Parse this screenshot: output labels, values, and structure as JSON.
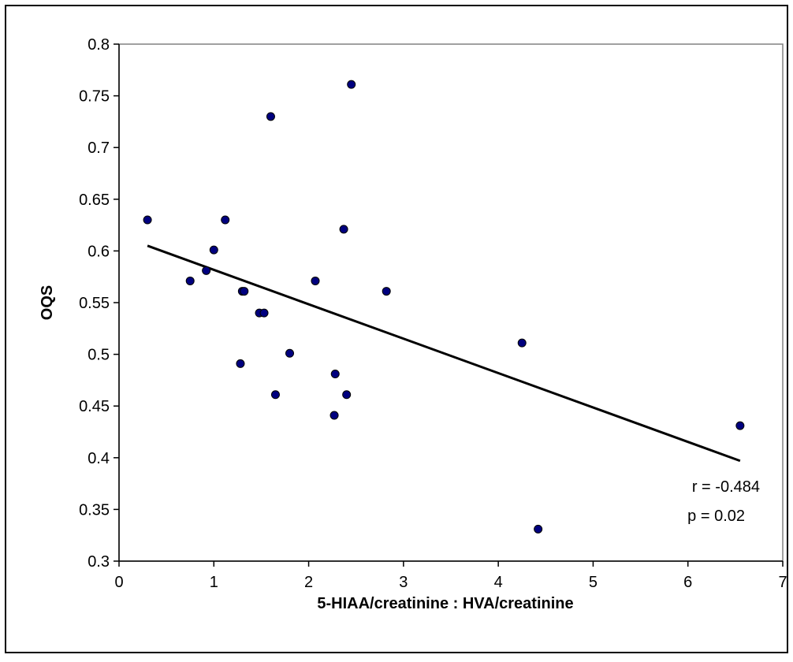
{
  "chart_data": {
    "type": "scatter",
    "title": "",
    "xlabel": "5-HIAA/creatinine : HVA/creatinine",
    "ylabel": "OQS",
    "xlim": [
      0,
      7
    ],
    "ylim": [
      0.3,
      0.8
    ],
    "x_ticks": [
      "0",
      "1",
      "2",
      "3",
      "4",
      "5",
      "6",
      "7"
    ],
    "y_ticks": [
      "0.3",
      "0.35",
      "0.4",
      "0.45",
      "0.5",
      "0.55",
      "0.6",
      "0.65",
      "0.7",
      "0.75",
      "0.8"
    ],
    "grid": false,
    "legend": "none",
    "marker_color": "#00007f",
    "marker_edge_color": "#000000",
    "line_color": "#000000",
    "points": [
      {
        "x": 0.3,
        "y": 0.63
      },
      {
        "x": 0.75,
        "y": 0.571
      },
      {
        "x": 0.92,
        "y": 0.581
      },
      {
        "x": 1.0,
        "y": 0.601
      },
      {
        "x": 1.12,
        "y": 0.63
      },
      {
        "x": 1.28,
        "y": 0.491
      },
      {
        "x": 1.3,
        "y": 0.561
      },
      {
        "x": 1.32,
        "y": 0.561
      },
      {
        "x": 1.48,
        "y": 0.54
      },
      {
        "x": 1.53,
        "y": 0.54
      },
      {
        "x": 1.6,
        "y": 0.73
      },
      {
        "x": 1.65,
        "y": 0.461
      },
      {
        "x": 1.8,
        "y": 0.501
      },
      {
        "x": 2.07,
        "y": 0.571
      },
      {
        "x": 2.27,
        "y": 0.441
      },
      {
        "x": 2.28,
        "y": 0.481
      },
      {
        "x": 2.37,
        "y": 0.621
      },
      {
        "x": 2.4,
        "y": 0.461
      },
      {
        "x": 2.45,
        "y": 0.761
      },
      {
        "x": 2.82,
        "y": 0.561
      },
      {
        "x": 4.25,
        "y": 0.511
      },
      {
        "x": 4.42,
        "y": 0.331
      },
      {
        "x": 6.55,
        "y": 0.431
      }
    ],
    "trendline": {
      "x": [
        0.3,
        6.55
      ],
      "y": [
        0.605,
        0.397
      ]
    },
    "annotations": [
      "r = -0.484",
      "p = 0.02"
    ]
  }
}
